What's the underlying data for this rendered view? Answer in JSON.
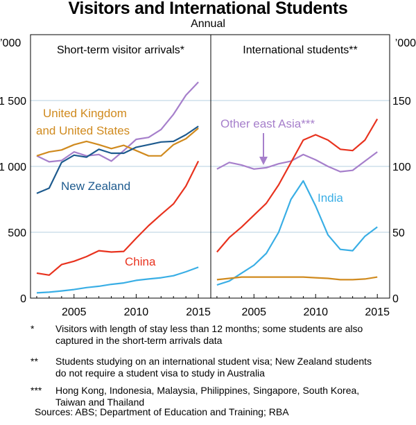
{
  "title": "Visitors and International Students",
  "subtitle": "Annual",
  "colors": {
    "uk_us": "#d08a1e",
    "nz": "#1d5a8e",
    "other_east_asia": "#a67fcb",
    "china": "#e8321e",
    "india": "#39aee5",
    "grid": "#b4cfe2"
  },
  "chart_data": [
    {
      "type": "line",
      "title": "Short-term visitor arrivals*",
      "ylabel": "’000",
      "ylim": [
        0,
        2000
      ],
      "yticks": [
        0,
        500,
        1000,
        1500
      ],
      "ytick_labels": [
        "0",
        "500",
        "1 000",
        "1 500"
      ],
      "xlim": [
        2001.5,
        2016
      ],
      "xticks": [
        2005,
        2010,
        2015
      ],
      "xtick_labels": [
        "2005",
        "2010",
        "2015"
      ],
      "x": [
        2002,
        2003,
        2004,
        2005,
        2006,
        2007,
        2008,
        2009,
        2010,
        2011,
        2012,
        2013,
        2014,
        2015
      ],
      "series": [
        {
          "name": "Other east Asia***",
          "color_key": "other_east_asia",
          "values": [
            1080,
            1035,
            1045,
            1110,
            1080,
            1090,
            1040,
            1120,
            1205,
            1220,
            1280,
            1395,
            1540,
            1640
          ]
        },
        {
          "name": "United Kingdom and United States",
          "color_key": "uk_us",
          "values": [
            1080,
            1110,
            1125,
            1165,
            1190,
            1165,
            1135,
            1160,
            1120,
            1080,
            1080,
            1165,
            1210,
            1290
          ]
        },
        {
          "name": "New Zealand",
          "color_key": "nz",
          "values": [
            795,
            835,
            1030,
            1085,
            1070,
            1130,
            1100,
            1100,
            1145,
            1165,
            1185,
            1190,
            1240,
            1305
          ]
        },
        {
          "name": "China",
          "color_key": "china",
          "values": [
            190,
            175,
            255,
            280,
            315,
            360,
            350,
            355,
            455,
            550,
            635,
            715,
            850,
            1040
          ]
        },
        {
          "name": "India",
          "color_key": "india",
          "values": [
            40,
            45,
            55,
            65,
            80,
            90,
            105,
            115,
            135,
            145,
            155,
            170,
            200,
            235
          ]
        }
      ],
      "labels": [
        {
          "series": "United Kingdom and United States",
          "lines": [
            "United Kingdom",
            "and United States"
          ]
        },
        {
          "series": "New Zealand",
          "lines": [
            "New Zealand"
          ]
        },
        {
          "series": "China",
          "lines": [
            "China"
          ]
        }
      ]
    },
    {
      "type": "line",
      "title": "International students**",
      "ylabel": "’000",
      "ylim": [
        0,
        200
      ],
      "yticks": [
        0,
        50,
        100,
        150
      ],
      "ytick_labels": [
        "0",
        "50",
        "100",
        "150"
      ],
      "xlim": [
        2001.5,
        2016
      ],
      "xticks": [
        2005,
        2010,
        2015
      ],
      "xtick_labels": [
        "2005",
        "2010",
        "2015"
      ],
      "x": [
        2002,
        2003,
        2004,
        2005,
        2006,
        2007,
        2008,
        2009,
        2010,
        2011,
        2012,
        2013,
        2014,
        2015
      ],
      "series": [
        {
          "name": "Other east Asia***",
          "color_key": "other_east_asia",
          "values": [
            98,
            103,
            101,
            98,
            99,
            102,
            104,
            109,
            105,
            100,
            96,
            97,
            104,
            111
          ]
        },
        {
          "name": "China",
          "color_key": "china",
          "values": [
            35,
            46,
            54,
            63,
            72,
            86,
            103,
            120,
            124,
            120,
            113,
            112,
            120,
            136
          ]
        },
        {
          "name": "India",
          "color_key": "india",
          "values": [
            10,
            13,
            19,
            25,
            34,
            50,
            75,
            89,
            70,
            48,
            37,
            36,
            47,
            54
          ]
        },
        {
          "name": "United Kingdom and United States",
          "color_key": "uk_us",
          "values": [
            14,
            15,
            16,
            16,
            16,
            16,
            16,
            16,
            15.5,
            15,
            14,
            14,
            14.5,
            16
          ]
        }
      ],
      "labels": [
        {
          "series": "Other east Asia***",
          "lines": [
            "Other east Asia***"
          ]
        },
        {
          "series": "India",
          "lines": [
            "India"
          ]
        }
      ]
    }
  ],
  "notes": [
    {
      "mark": "*",
      "text": "Visitors with length of stay less than 12 months; some students are also captured in the short-term arrivals data"
    },
    {
      "mark": "**",
      "text": "Students studying on an international student visa; New Zealand students do not require a student visa to study in Australia"
    },
    {
      "mark": "***",
      "text": "Hong Kong, Indonesia, Malaysia, Philippines, Singapore, South Korea, Taiwan and Thailand"
    }
  ],
  "sources": "Sources:  ABS; Department of Education and Training; RBA"
}
